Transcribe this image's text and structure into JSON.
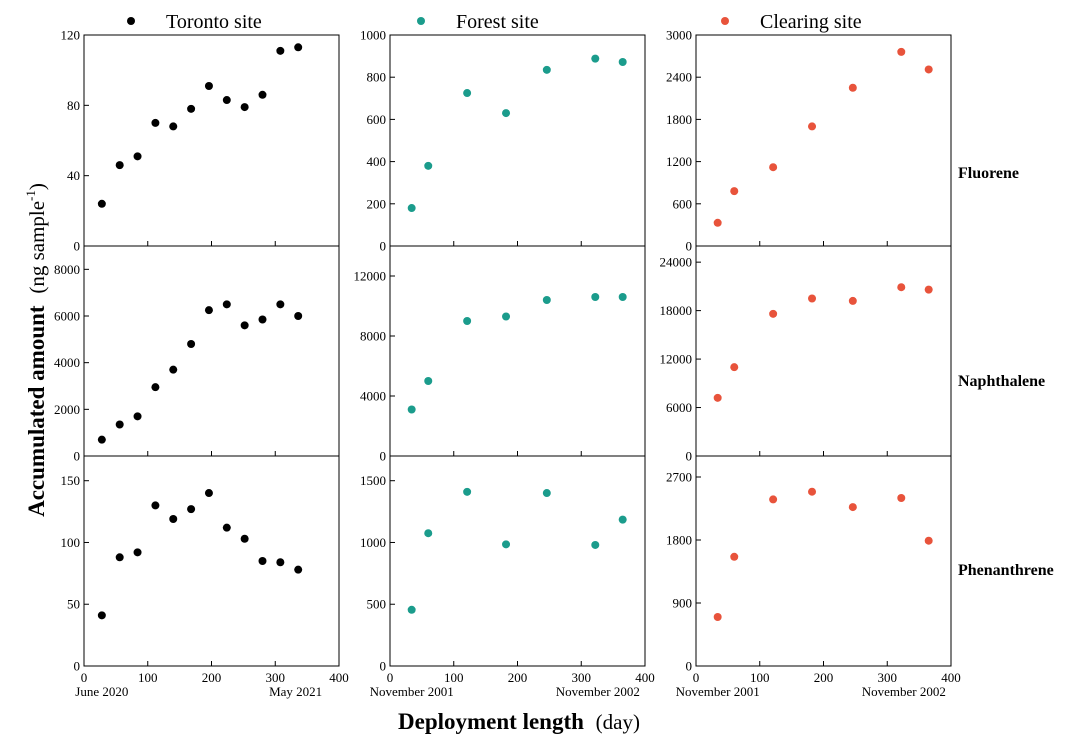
{
  "chart_data": {
    "type": "scatter",
    "layout": "3 rows x 3 columns of scatter panels sharing rows (compounds) and columns (sites)",
    "ylabel_main": "Accumulated amount",
    "ylabel_unit_pre": "(ng sample",
    "ylabel_unit_sup": "-1",
    "ylabel_unit_post": ")",
    "xlabel_main": "Deployment length",
    "xlabel_unit": "(day)",
    "x_range": [
      0,
      400
    ],
    "x_ticks": [
      "0",
      "100",
      "200",
      "300",
      "400"
    ],
    "sites": [
      {
        "name": "Toronto site",
        "color": "#000000",
        "date_labels": [
          {
            "x": 28,
            "text": "June 2020"
          },
          {
            "x": 332,
            "text": "May 2021"
          }
        ]
      },
      {
        "name": "Forest site",
        "color": "#1b9c8c",
        "date_labels": [
          {
            "x": 34,
            "text": "November 2001"
          },
          {
            "x": 326,
            "text": "November 2002"
          }
        ]
      },
      {
        "name": "Clearing site",
        "color": "#e8533b",
        "date_labels": [
          {
            "x": 34,
            "text": "November 2001"
          },
          {
            "x": 326,
            "text": "November 2002"
          }
        ]
      }
    ],
    "compounds": [
      "Fluorene",
      "Naphthalene",
      "Phenanthrene"
    ],
    "panels": [
      [
        {
          "ylim": [
            0,
            120
          ],
          "yticks": [
            "0",
            "40",
            "80",
            "120"
          ],
          "x": [
            28,
            56,
            84,
            112,
            140,
            168,
            196,
            224,
            252,
            280,
            308,
            336
          ],
          "y": [
            24,
            46,
            51,
            70,
            68,
            78,
            91,
            83,
            79,
            86,
            111,
            113
          ]
        },
        {
          "ylim": [
            0,
            1000
          ],
          "yticks": [
            "0",
            "200",
            "400",
            "600",
            "800",
            "1000"
          ],
          "x": [
            34,
            60,
            121,
            182,
            246,
            322,
            365
          ],
          "y": [
            180,
            380,
            725,
            630,
            835,
            888,
            872
          ]
        },
        {
          "ylim": [
            0,
            3000
          ],
          "yticks": [
            "0",
            "600",
            "1200",
            "1800",
            "2400",
            "3000"
          ],
          "x": [
            34,
            60,
            121,
            182,
            246,
            322,
            365
          ],
          "y": [
            330,
            780,
            1120,
            1700,
            2250,
            2760,
            2510
          ]
        }
      ],
      [
        {
          "ylim": [
            0,
            9000
          ],
          "yticks": [
            "0",
            "2000",
            "4000",
            "6000",
            "8000"
          ],
          "x": [
            28,
            56,
            84,
            112,
            140,
            168,
            196,
            224,
            252,
            280,
            308,
            336
          ],
          "y": [
            700,
            1350,
            1700,
            2950,
            3700,
            4800,
            6250,
            6500,
            5600,
            5850,
            6500,
            6000
          ]
        },
        {
          "ylim": [
            0,
            14000
          ],
          "yticks": [
            "0",
            "4000",
            "8000",
            "12000"
          ],
          "x": [
            34,
            60,
            121,
            182,
            246,
            322,
            365
          ],
          "y": [
            3100,
            5000,
            9000,
            9300,
            10400,
            10600,
            10600
          ]
        },
        {
          "ylim": [
            0,
            26000
          ],
          "yticks": [
            "0",
            "6000",
            "12000",
            "18000",
            "24000"
          ],
          "x": [
            34,
            60,
            121,
            182,
            246,
            322,
            365
          ],
          "y": [
            7200,
            11000,
            17600,
            19500,
            19200,
            20900,
            20600
          ]
        }
      ],
      [
        {
          "ylim": [
            0,
            170
          ],
          "yticks": [
            "0",
            "50",
            "100",
            "150"
          ],
          "x": [
            28,
            56,
            84,
            112,
            140,
            168,
            196,
            224,
            252,
            280,
            308,
            336
          ],
          "y": [
            41,
            88,
            92,
            130,
            119,
            127,
            140,
            112,
            103,
            85,
            84,
            78
          ]
        },
        {
          "ylim": [
            0,
            1700
          ],
          "yticks": [
            "0",
            "500",
            "1000",
            "1500"
          ],
          "x": [
            34,
            60,
            121,
            182,
            246,
            322,
            365
          ],
          "y": [
            455,
            1075,
            1410,
            985,
            1400,
            980,
            1185
          ]
        },
        {
          "ylim": [
            0,
            3000
          ],
          "yticks": [
            "0",
            "900",
            "1800",
            "2700"
          ],
          "x": [
            34,
            60,
            121,
            182,
            246,
            322,
            365
          ],
          "y": [
            700,
            1560,
            2380,
            2490,
            2270,
            2400,
            1790
          ]
        }
      ]
    ]
  }
}
